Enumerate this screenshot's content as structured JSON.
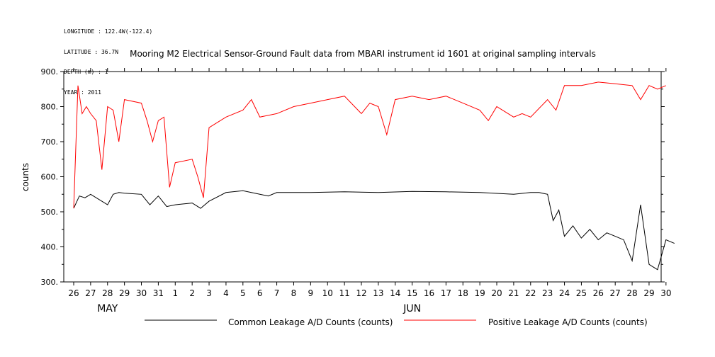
{
  "header": {
    "lines": [
      "LONGITUDE : 122.4W(-122.4)",
      "LATITUDE : 36.7N",
      "DEPTH (m) : 1",
      "YEAR : 2011"
    ]
  },
  "chart_data": {
    "type": "line",
    "title": "Mooring M2 Electrical Sensor-Ground Fault data from MBARI instrument id 1601 at original sampling intervals",
    "ylabel": "counts",
    "ylim": [
      300,
      900
    ],
    "yticks": [
      "300.",
      "400.",
      "500.",
      "600.",
      "700.",
      "800.",
      "900."
    ],
    "xlim": [
      "2011-05-26",
      "2011-06-30"
    ],
    "xtick_labels": [
      "26",
      "27",
      "28",
      "29",
      "30",
      "31",
      "1",
      "2",
      "3",
      "4",
      "5",
      "6",
      "7",
      "8",
      "9",
      "10",
      "11",
      "12",
      "13",
      "14",
      "15",
      "16",
      "17",
      "18",
      "19",
      "20",
      "21",
      "22",
      "23",
      "24",
      "25",
      "26",
      "27",
      "28",
      "29",
      "30"
    ],
    "month_labels": [
      {
        "label": "MAY",
        "day": "2011-05-28"
      },
      {
        "label": "JUN",
        "day": "2011-06-15"
      }
    ],
    "series": [
      {
        "name": "Common Leakage A/D Counts (counts)",
        "color": "#000000",
        "x": [
          "2011-05-26",
          "2011-05-26",
          "2011-05-26",
          "2011-05-27",
          "2011-05-28",
          "2011-05-28",
          "2011-05-28",
          "2011-05-29",
          "2011-05-30",
          "2011-05-30",
          "2011-05-31",
          "2011-05-31",
          "2011-06-01",
          "2011-06-02",
          "2011-06-02",
          "2011-06-03",
          "2011-06-04",
          "2011-06-05",
          "2011-06-06",
          "2011-06-06",
          "2011-06-07",
          "2011-06-09",
          "2011-06-11",
          "2011-06-13",
          "2011-06-15",
          "2011-06-17",
          "2011-06-19",
          "2011-06-21",
          "2011-06-22",
          "2011-06-22",
          "2011-06-23",
          "2011-06-23",
          "2011-06-23",
          "2011-06-24",
          "2011-06-24",
          "2011-06-25",
          "2011-06-25",
          "2011-06-26",
          "2011-06-26",
          "2011-06-27",
          "2011-06-27",
          "2011-06-28",
          "2011-06-28",
          "2011-06-29",
          "2011-06-29",
          "2011-06-30",
          "2011-06-30"
        ],
        "y": [
          510,
          545,
          540,
          550,
          520,
          550,
          555,
          553,
          550,
          520,
          545,
          515,
          520,
          525,
          510,
          530,
          555,
          560,
          550,
          545,
          555,
          555,
          557,
          555,
          558,
          557,
          555,
          550,
          555,
          555,
          550,
          475,
          505,
          430,
          460,
          425,
          450,
          420,
          440,
          430,
          420,
          360,
          520,
          350,
          335,
          420,
          410
        ]
      },
      {
        "name": "Positive Leakage A/D Counts (counts)",
        "color": "#ff0000",
        "x": [
          "2011-05-26",
          "2011-05-26",
          "2011-05-26",
          "2011-05-26",
          "2011-05-27",
          "2011-05-27",
          "2011-05-27",
          "2011-05-28",
          "2011-05-28",
          "2011-05-28",
          "2011-05-29",
          "2011-05-30",
          "2011-05-30",
          "2011-05-30",
          "2011-05-31",
          "2011-05-31",
          "2011-05-31",
          "2011-06-01",
          "2011-06-02",
          "2011-06-02",
          "2011-06-02",
          "2011-06-03",
          "2011-06-04",
          "2011-06-05",
          "2011-06-05",
          "2011-06-06",
          "2011-06-07",
          "2011-06-08",
          "2011-06-09",
          "2011-06-10",
          "2011-06-11",
          "2011-06-12",
          "2011-06-12",
          "2011-06-13",
          "2011-06-13",
          "2011-06-14",
          "2011-06-15",
          "2011-06-16",
          "2011-06-17",
          "2011-06-18",
          "2011-06-19",
          "2011-06-19",
          "2011-06-20",
          "2011-06-21",
          "2011-06-21",
          "2011-06-22",
          "2011-06-23",
          "2011-06-23",
          "2011-06-24",
          "2011-06-25",
          "2011-06-26",
          "2011-06-27",
          "2011-06-28",
          "2011-06-28",
          "2011-06-29",
          "2011-06-29",
          "2011-06-30"
        ],
        "y": [
          510,
          860,
          780,
          800,
          780,
          760,
          620,
          800,
          790,
          700,
          820,
          810,
          760,
          700,
          760,
          770,
          570,
          640,
          650,
          600,
          540,
          740,
          770,
          790,
          820,
          770,
          780,
          800,
          810,
          820,
          830,
          780,
          810,
          800,
          720,
          820,
          830,
          820,
          830,
          810,
          790,
          760,
          800,
          770,
          780,
          770,
          820,
          790,
          860,
          860,
          870,
          865,
          860,
          820,
          860,
          850,
          860
        ]
      }
    ],
    "legend": "bottom"
  }
}
